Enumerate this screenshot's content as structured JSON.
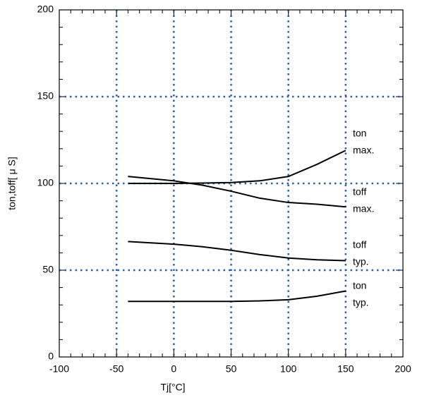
{
  "chart_data": {
    "type": "line",
    "x_label": "Tj[°C]",
    "y_label": "ton,toff[ μ S]",
    "xlim": [
      -100,
      200
    ],
    "xticks": [
      -100,
      -50,
      0,
      50,
      100,
      150,
      200
    ],
    "ylim": [
      0,
      200
    ],
    "yticks": [
      0,
      50,
      100,
      150,
      200
    ],
    "x_minor_step": 10,
    "y_minor_step": 10,
    "grid": true,
    "grid_color": "#2e5fa8",
    "line_color": "#000000",
    "x": [
      -40,
      0,
      25,
      50,
      75,
      100,
      125,
      150
    ],
    "series": [
      {
        "label": [
          "ton",
          "max."
        ],
        "values": [
          100,
          100,
          100.2,
          100.5,
          101.5,
          104,
          111,
          119
        ]
      },
      {
        "label": [
          "toff",
          "max."
        ],
        "values": [
          104,
          101.5,
          99,
          95.5,
          91.5,
          89,
          88,
          86.5
        ]
      },
      {
        "label": [
          "toff",
          "typ."
        ],
        "values": [
          66.5,
          65,
          63.5,
          61.5,
          59,
          57,
          56,
          55.5
        ]
      },
      {
        "label": [
          "ton",
          "typ."
        ],
        "values": [
          32,
          32,
          32,
          32,
          32.3,
          33,
          35,
          38
        ]
      }
    ]
  }
}
